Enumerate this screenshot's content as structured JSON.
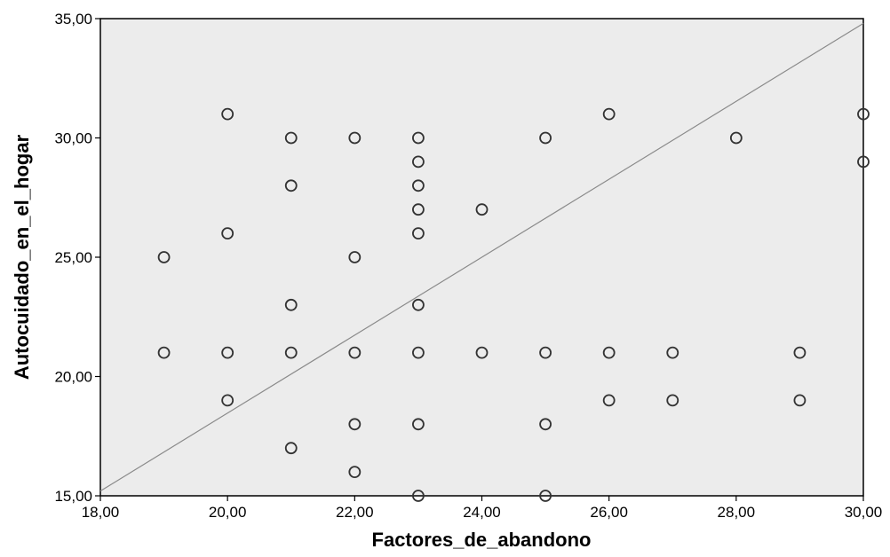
{
  "chart_data": {
    "type": "scatter",
    "title": "",
    "xlabel": "Factores_de_abandono",
    "ylabel": "Autocuidado_en_el_hogar",
    "xlim": [
      18,
      30
    ],
    "ylim": [
      15,
      35
    ],
    "x_ticks": [
      "18,00",
      "20,00",
      "22,00",
      "24,00",
      "26,00",
      "28,00",
      "30,00"
    ],
    "x_tick_values": [
      18,
      20,
      22,
      24,
      26,
      28,
      30
    ],
    "y_ticks": [
      "15,00",
      "20,00",
      "25,00",
      "30,00",
      "35,00"
    ],
    "y_tick_values": [
      15,
      20,
      25,
      30,
      35
    ],
    "grid": false,
    "plot_background": "#ececec",
    "marker_color": "#333333",
    "fit_line": {
      "x": [
        18,
        30
      ],
      "y": [
        15.2,
        34.8
      ],
      "color": "#8a8a8a"
    },
    "series": [
      {
        "points": [
          {
            "x": 19,
            "y": 25
          },
          {
            "x": 19,
            "y": 21
          },
          {
            "x": 20,
            "y": 31
          },
          {
            "x": 20,
            "y": 26
          },
          {
            "x": 20,
            "y": 21
          },
          {
            "x": 20,
            "y": 19
          },
          {
            "x": 21,
            "y": 30
          },
          {
            "x": 21,
            "y": 28
          },
          {
            "x": 21,
            "y": 23
          },
          {
            "x": 21,
            "y": 21
          },
          {
            "x": 21,
            "y": 17
          },
          {
            "x": 22,
            "y": 30
          },
          {
            "x": 22,
            "y": 25
          },
          {
            "x": 22,
            "y": 21
          },
          {
            "x": 22,
            "y": 18
          },
          {
            "x": 22,
            "y": 16
          },
          {
            "x": 23,
            "y": 30
          },
          {
            "x": 23,
            "y": 29
          },
          {
            "x": 23,
            "y": 28
          },
          {
            "x": 23,
            "y": 27
          },
          {
            "x": 23,
            "y": 26
          },
          {
            "x": 23,
            "y": 23
          },
          {
            "x": 23,
            "y": 21
          },
          {
            "x": 23,
            "y": 18
          },
          {
            "x": 23,
            "y": 15
          },
          {
            "x": 24,
            "y": 27
          },
          {
            "x": 24,
            "y": 21
          },
          {
            "x": 25,
            "y": 30
          },
          {
            "x": 25,
            "y": 21
          },
          {
            "x": 25,
            "y": 18
          },
          {
            "x": 25,
            "y": 15
          },
          {
            "x": 26,
            "y": 31
          },
          {
            "x": 26,
            "y": 21
          },
          {
            "x": 26,
            "y": 19
          },
          {
            "x": 27,
            "y": 21
          },
          {
            "x": 27,
            "y": 19
          },
          {
            "x": 28,
            "y": 30
          },
          {
            "x": 29,
            "y": 21
          },
          {
            "x": 29,
            "y": 19
          },
          {
            "x": 30,
            "y": 31
          },
          {
            "x": 30,
            "y": 29
          }
        ]
      }
    ]
  }
}
